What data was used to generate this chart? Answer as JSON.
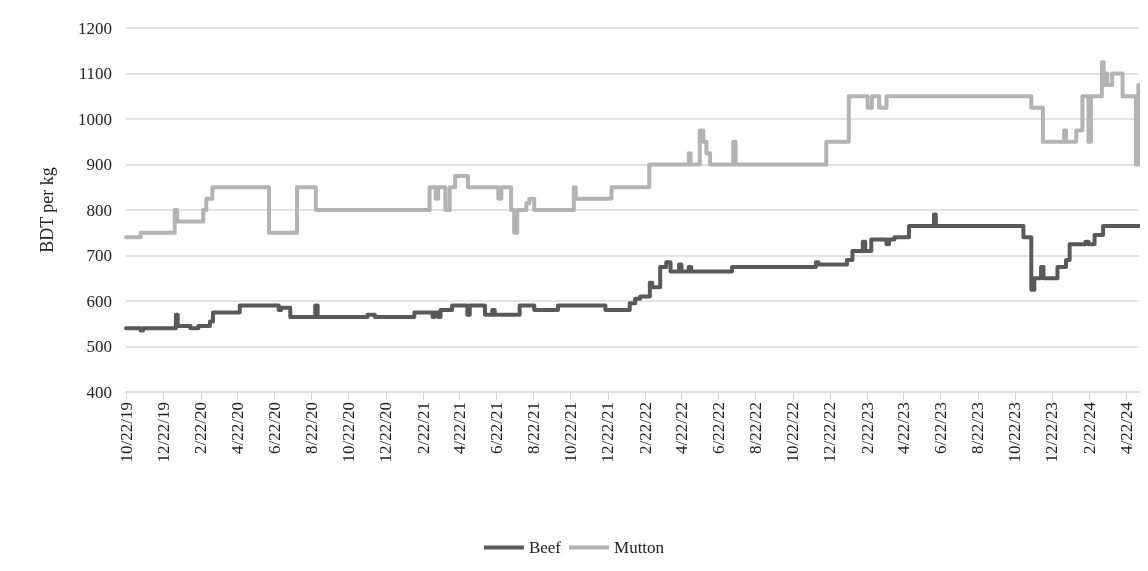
{
  "chart_data": {
    "type": "step",
    "ylabel": "BDT per kg",
    "ylim": [
      400,
      1200
    ],
    "yticks": [
      400,
      500,
      600,
      700,
      800,
      900,
      1000,
      1100,
      1200
    ],
    "xlim": [
      "2019-10-22",
      "2024-05-13"
    ],
    "xticks": [
      {
        "value": "2019-10-22",
        "label": "10/22/19"
      },
      {
        "value": "2019-12-22",
        "label": "12/22/19"
      },
      {
        "value": "2020-02-22",
        "label": "2/22/20"
      },
      {
        "value": "2020-04-22",
        "label": "4/22/20"
      },
      {
        "value": "2020-06-22",
        "label": "6/22/20"
      },
      {
        "value": "2020-08-22",
        "label": "8/22/20"
      },
      {
        "value": "2020-10-22",
        "label": "10/22/20"
      },
      {
        "value": "2020-12-22",
        "label": "12/22/20"
      },
      {
        "value": "2021-02-22",
        "label": "2/22/21"
      },
      {
        "value": "2021-04-22",
        "label": "4/22/21"
      },
      {
        "value": "2021-06-22",
        "label": "6/22/21"
      },
      {
        "value": "2021-08-22",
        "label": "8/22/21"
      },
      {
        "value": "2021-10-22",
        "label": "10/22/21"
      },
      {
        "value": "2021-12-22",
        "label": "12/22/21"
      },
      {
        "value": "2022-02-22",
        "label": "2/22/22"
      },
      {
        "value": "2022-04-22",
        "label": "4/22/22"
      },
      {
        "value": "2022-06-22",
        "label": "6/22/22"
      },
      {
        "value": "2022-08-22",
        "label": "8/22/22"
      },
      {
        "value": "2022-10-22",
        "label": "10/22/22"
      },
      {
        "value": "2022-12-22",
        "label": "12/22/22"
      },
      {
        "value": "2023-02-22",
        "label": "2/22/23"
      },
      {
        "value": "2023-04-22",
        "label": "4/22/23"
      },
      {
        "value": "2023-06-22",
        "label": "6/22/23"
      },
      {
        "value": "2023-08-22",
        "label": "8/22/23"
      },
      {
        "value": "2023-10-22",
        "label": "10/22/23"
      },
      {
        "value": "2023-12-22",
        "label": "12/22/23"
      },
      {
        "value": "2024-02-22",
        "label": "2/22/24"
      },
      {
        "value": "2024-04-22",
        "label": "4/22/24"
      }
    ],
    "grid": "y",
    "legend": "bottom",
    "series": [
      {
        "name": "Beef",
        "color": "#595959",
        "x": [
          "2019-10-22",
          "2019-11-15",
          "2019-11-19",
          "2020-01-12",
          "2020-01-15",
          "2020-02-05",
          "2020-02-18",
          "2020-03-08",
          "2020-03-13",
          "2020-04-26",
          "2020-06-29",
          "2020-07-03",
          "2020-07-18",
          "2020-08-28",
          "2020-09-01",
          "2020-11-22",
          "2020-12-04",
          "2021-02-07",
          "2021-03-09",
          "2021-03-12",
          "2021-03-18",
          "2021-03-22",
          "2021-04-10",
          "2021-05-05",
          "2021-05-09",
          "2021-06-03",
          "2021-06-15",
          "2021-06-19",
          "2021-07-30",
          "2021-08-23",
          "2021-10-01",
          "2021-12-18",
          "2022-01-27",
          "2022-02-05",
          "2022-02-13",
          "2022-03-01",
          "2022-03-05",
          "2022-03-18",
          "2022-03-28",
          "2022-04-04",
          "2022-04-18",
          "2022-04-22",
          "2022-05-04",
          "2022-05-08",
          "2022-07-14",
          "2022-11-29",
          "2022-12-03",
          "2023-01-19",
          "2023-01-28",
          "2023-02-14",
          "2023-02-18",
          "2023-02-28",
          "2023-03-25",
          "2023-03-29",
          "2023-04-07",
          "2023-05-01",
          "2023-06-11",
          "2023-06-14",
          "2023-11-05",
          "2023-11-18",
          "2023-11-23",
          "2023-12-04",
          "2023-12-08",
          "2023-12-31",
          "2024-01-14",
          "2024-01-20",
          "2024-02-15",
          "2024-02-20",
          "2024-03-01",
          "2024-03-15",
          "2024-05-13"
        ],
        "values": [
          540,
          535,
          540,
          570,
          545,
          540,
          545,
          555,
          575,
          590,
          580,
          585,
          565,
          590,
          565,
          570,
          565,
          575,
          565,
          575,
          565,
          580,
          590,
          570,
          590,
          570,
          580,
          570,
          590,
          580,
          590,
          580,
          595,
          605,
          610,
          640,
          630,
          675,
          685,
          665,
          680,
          665,
          675,
          665,
          675,
          685,
          680,
          690,
          710,
          730,
          710,
          735,
          725,
          735,
          740,
          765,
          790,
          765,
          740,
          625,
          650,
          675,
          650,
          675,
          690,
          725,
          730,
          725,
          745,
          765,
          765
        ]
      },
      {
        "name": "Mutton",
        "color": "#b3b3b3",
        "x": [
          "2019-10-22",
          "2019-11-15",
          "2020-01-10",
          "2020-01-14",
          "2020-02-26",
          "2020-03-02",
          "2020-03-12",
          "2020-06-13",
          "2020-07-29",
          "2020-08-29",
          "2021-03-04",
          "2021-03-14",
          "2021-03-18",
          "2021-03-30",
          "2021-04-06",
          "2021-04-15",
          "2021-05-06",
          "2021-06-25",
          "2021-06-30",
          "2021-07-16",
          "2021-07-21",
          "2021-07-26",
          "2021-08-10",
          "2021-08-15",
          "2021-08-23",
          "2021-10-27",
          "2021-10-30",
          "2021-12-28",
          "2022-02-28",
          "2022-05-04",
          "2022-05-07",
          "2022-05-22",
          "2022-05-28",
          "2022-06-02",
          "2022-06-08",
          "2022-07-16",
          "2022-07-20",
          "2022-12-16",
          "2023-01-22",
          "2023-02-22",
          "2023-03-01",
          "2023-03-13",
          "2023-03-25",
          "2023-11-18",
          "2023-12-07",
          "2024-01-11",
          "2024-01-14",
          "2024-01-31",
          "2024-02-10",
          "2024-02-20",
          "2024-02-24",
          "2024-03-13",
          "2024-03-16",
          "2024-03-18",
          "2024-03-22",
          "2024-03-30",
          "2024-04-16",
          "2024-05-08",
          "2024-05-12"
        ],
        "values": [
          740,
          750,
          800,
          775,
          800,
          825,
          850,
          750,
          850,
          800,
          850,
          825,
          850,
          800,
          850,
          875,
          850,
          825,
          850,
          800,
          750,
          800,
          815,
          825,
          800,
          850,
          825,
          850,
          900,
          925,
          900,
          975,
          950,
          925,
          900,
          950,
          900,
          950,
          1050,
          1025,
          1050,
          1025,
          1050,
          1025,
          950,
          975,
          950,
          975,
          1050,
          950,
          1050,
          1125,
          1075,
          1100,
          1075,
          1100,
          1050,
          900,
          1075
        ]
      }
    ]
  }
}
